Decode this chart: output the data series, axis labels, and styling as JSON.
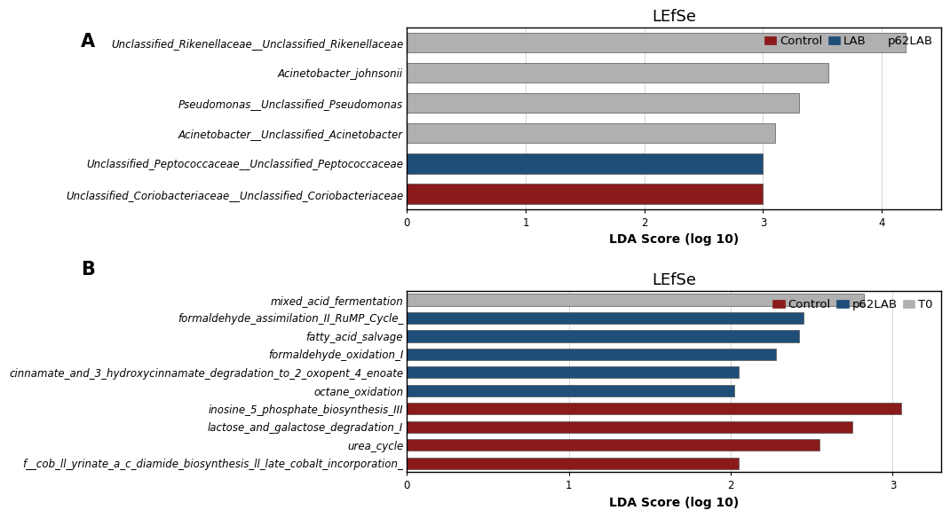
{
  "panel_a": {
    "title": "LEfSe",
    "xlabel": "LDA Score (log 10)",
    "xlim": [
      0,
      4.5
    ],
    "xticks": [
      0,
      1,
      2,
      3,
      4
    ],
    "categories": [
      "Unclassified_Coriobacteriaceae__Unclassified_Coriobacteriaceae",
      "Unclassified_Peptococcaceae__Unclassified_Peptococcaceae",
      "Acinetobacter__Unclassified_Acinetobacter",
      "Pseudomonas__Unclassified_Pseudomonas",
      "Acinetobacter_johnsonii",
      "Unclassified_Rikenellaceae__Unclassified_Rikenellaceae"
    ],
    "values": [
      3.0,
      3.0,
      3.1,
      3.3,
      3.55,
      4.2
    ],
    "colors": [
      "#8b1a1a",
      "#1f4e79",
      "#b0b0b0",
      "#b0b0b0",
      "#b0b0b0",
      "#b0b0b0"
    ],
    "legend_labels": [
      "Control",
      "LAB",
      "p62LAB"
    ],
    "legend_colors": [
      "#8b1a1a",
      "#1f4e79",
      "#b0b0b0"
    ]
  },
  "panel_b": {
    "title": "LEfSe",
    "xlabel": "LDA Score (log 10)",
    "xlim": [
      0,
      3.3
    ],
    "xticks": [
      0,
      1,
      2,
      3
    ],
    "categories": [
      "f__cob_ll_yrinate_a_c_diamide_biosynthesis_ll_late_cobalt_incorporation_",
      "urea_cycle",
      "lactose_and_galactose_degradation_I",
      "inosine_5_phosphate_biosynthesis_III",
      "octane_oxidation",
      "cinnamate_and_3_hydroxycinnamate_degradation_to_2_oxopent_4_enoate",
      "formaldehyde_oxidation_I",
      "fatty_acid_salvage",
      "formaldehyde_assimilation_II_RuMP_Cycle_",
      "mixed_acid_fermentation"
    ],
    "values": [
      2.05,
      2.55,
      2.75,
      3.05,
      2.02,
      2.05,
      2.28,
      2.42,
      2.45,
      2.82
    ],
    "colors": [
      "#8b1a1a",
      "#8b1a1a",
      "#8b1a1a",
      "#8b1a1a",
      "#1f4e79",
      "#1f4e79",
      "#1f4e79",
      "#1f4e79",
      "#1f4e79",
      "#b0b0b0"
    ],
    "legend_labels": [
      "Control",
      "p62LAB",
      "T0"
    ],
    "legend_colors": [
      "#8b1a1a",
      "#1f4e79",
      "#b0b0b0"
    ]
  },
  "background_color": "#ffffff",
  "outer_bg": "#f0f0f0",
  "bar_height": 0.65,
  "panel_label_fontsize": 15,
  "title_fontsize": 13,
  "tick_fontsize": 8.5,
  "label_fontsize": 10,
  "legend_fontsize": 9.5
}
